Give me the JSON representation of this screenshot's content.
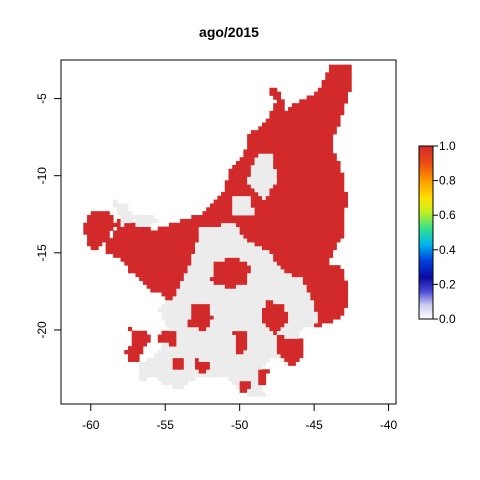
{
  "chart_data": {
    "type": "heatmap",
    "title": "ago/2015",
    "xlabel": "",
    "ylabel": "",
    "xlim": [
      -62,
      -39.5
    ],
    "ylim": [
      -24.8,
      -2.5
    ],
    "x_ticks": [
      -60,
      -55,
      -50,
      -45,
      -40
    ],
    "y_ticks": [
      -5,
      -10,
      -15,
      -20
    ],
    "x_tick_labels": [
      "-60",
      "-55",
      "-50",
      "-45",
      "-40"
    ],
    "y_tick_labels": [
      "-5",
      "-10",
      "-15",
      "-20"
    ],
    "cell_size_deg": 0.25,
    "colorbar": {
      "range": [
        0,
        1
      ],
      "ticks": [
        0.0,
        0.2,
        0.4,
        0.6,
        0.8,
        1.0
      ],
      "tick_labels": [
        "0.0",
        "0.2",
        "0.4",
        "0.6",
        "0.8",
        "1.0"
      ]
    },
    "colors": {
      "high": "#d22a2a",
      "low": "#ececec",
      "frame": "#000000"
    },
    "regions_value_1": [
      [
        [
          -46.9,
          -5.7
        ],
        [
          -44.8,
          -4.6
        ],
        [
          -43.8,
          -2.7
        ],
        [
          -42.5,
          -2.7
        ],
        [
          -42.6,
          -4.6
        ],
        [
          -43.2,
          -6.3
        ],
        [
          -43.9,
          -8.1
        ],
        [
          -43.2,
          -9.5
        ],
        [
          -42.8,
          -11.5
        ],
        [
          -43.1,
          -13.9
        ],
        [
          -44.1,
          -15.6
        ],
        [
          -43.2,
          -16.0
        ],
        [
          -42.6,
          -17.3
        ],
        [
          -43.0,
          -19.1
        ],
        [
          -44.7,
          -19.8
        ],
        [
          -46.6,
          -20.0
        ],
        [
          -48.8,
          -19.0
        ],
        [
          -50.0,
          -18.1
        ],
        [
          -50.9,
          -17.7
        ],
        [
          -52.5,
          -17.8
        ],
        [
          -53.2,
          -18.6
        ],
        [
          -54.7,
          -18.3
        ],
        [
          -55.8,
          -17.0
        ],
        [
          -57.4,
          -16.2
        ],
        [
          -57.9,
          -15.4
        ],
        [
          -59.0,
          -15.0
        ],
        [
          -58.9,
          -14.1
        ],
        [
          -58.4,
          -13.8
        ],
        [
          -58.2,
          -12.8
        ],
        [
          -55.7,
          -13.5
        ],
        [
          -54.2,
          -13.0
        ],
        [
          -52.5,
          -12.4
        ],
        [
          -51.2,
          -11.2
        ],
        [
          -50.6,
          -9.6
        ],
        [
          -49.7,
          -8.7
        ],
        [
          -49.4,
          -7.4
        ],
        [
          -48.7,
          -6.8
        ],
        [
          -48.0,
          -6.2
        ],
        [
          -47.5,
          -5.1
        ],
        [
          -48.1,
          -4.6
        ],
        [
          -47.8,
          -4.3
        ],
        [
          -47.5,
          -4.1
        ]
      ],
      [
        [
          -60.0,
          -12.3
        ],
        [
          -58.8,
          -12.2
        ],
        [
          -58.3,
          -13.1
        ],
        [
          -58.9,
          -14.0
        ],
        [
          -59.7,
          -14.8
        ],
        [
          -60.2,
          -14.6
        ],
        [
          -60.5,
          -13.4
        ]
      ],
      [
        [
          -57.4,
          -19.9
        ],
        [
          -56.4,
          -20.0
        ],
        [
          -55.9,
          -20.7
        ],
        [
          -56.6,
          -21.4
        ],
        [
          -56.8,
          -22.0
        ],
        [
          -57.3,
          -22.1
        ],
        [
          -57.7,
          -21.4
        ],
        [
          -57.3,
          -20.9
        ]
      ],
      [
        [
          -56.7,
          -15.5
        ],
        [
          -55.6,
          -15.7
        ],
        [
          -55.0,
          -16.5
        ],
        [
          -54.8,
          -17.4
        ],
        [
          -55.9,
          -17.6
        ],
        [
          -56.7,
          -16.8
        ]
      ],
      [
        [
          -51.8,
          -15.7
        ],
        [
          -50.3,
          -15.2
        ],
        [
          -49.3,
          -15.9
        ],
        [
          -49.5,
          -16.9
        ],
        [
          -50.6,
          -17.3
        ],
        [
          -51.9,
          -16.9
        ]
      ],
      [
        [
          -53.1,
          -18.3
        ],
        [
          -52.1,
          -18.2
        ],
        [
          -51.8,
          -19.3
        ],
        [
          -52.3,
          -20.1
        ],
        [
          -53.5,
          -19.7
        ]
      ],
      [
        [
          -48.2,
          -18.0
        ],
        [
          -47.0,
          -18.4
        ],
        [
          -46.7,
          -19.5
        ],
        [
          -47.6,
          -20.2
        ],
        [
          -48.6,
          -19.4
        ]
      ],
      [
        [
          -47.4,
          -20.4
        ],
        [
          -45.9,
          -20.5
        ],
        [
          -45.6,
          -21.6
        ],
        [
          -46.5,
          -22.3
        ],
        [
          -47.4,
          -21.6
        ]
      ],
      [
        [
          -50.4,
          -20.0
        ],
        [
          -49.6,
          -20.0
        ],
        [
          -49.4,
          -21.2
        ],
        [
          -50.2,
          -21.6
        ]
      ],
      [
        [
          -55.3,
          -19.9
        ],
        [
          -54.2,
          -20.2
        ],
        [
          -54.3,
          -21.0
        ],
        [
          -55.5,
          -20.8
        ]
      ],
      [
        [
          -54.6,
          -21.7
        ],
        [
          -53.8,
          -21.8
        ],
        [
          -53.7,
          -22.5
        ],
        [
          -54.5,
          -22.6
        ]
      ],
      [
        [
          -52.9,
          -21.9
        ],
        [
          -52.0,
          -22.1
        ],
        [
          -52.2,
          -22.9
        ],
        [
          -53.0,
          -22.6
        ]
      ],
      [
        [
          -48.8,
          -22.7
        ],
        [
          -48.1,
          -22.6
        ],
        [
          -48.2,
          -23.6
        ],
        [
          -48.8,
          -23.4
        ]
      ],
      [
        [
          -50.1,
          -23.4
        ],
        [
          -49.3,
          -23.3
        ],
        [
          -49.4,
          -24.0
        ],
        [
          -50.0,
          -24.0
        ]
      ]
    ],
    "regions_value_0": [
      [
        [
          -52.6,
          -13.3
        ],
        [
          -50.3,
          -13.1
        ],
        [
          -49.6,
          -14.2
        ],
        [
          -48.0,
          -14.9
        ],
        [
          -47.0,
          -16.3
        ],
        [
          -45.9,
          -16.6
        ],
        [
          -45.0,
          -18.3
        ],
        [
          -44.6,
          -19.5
        ],
        [
          -46.0,
          -20.0
        ],
        [
          -46.6,
          -22.4
        ],
        [
          -47.8,
          -21.6
        ],
        [
          -48.9,
          -23.1
        ],
        [
          -48.3,
          -24.3
        ],
        [
          -49.4,
          -24.3
        ],
        [
          -50.9,
          -23.1
        ],
        [
          -52.9,
          -23.0
        ],
        [
          -53.8,
          -23.8
        ],
        [
          -55.1,
          -23.6
        ],
        [
          -55.8,
          -23.0
        ],
        [
          -56.6,
          -23.4
        ],
        [
          -56.9,
          -22.3
        ],
        [
          -55.6,
          -21.6
        ],
        [
          -54.7,
          -20.0
        ],
        [
          -55.5,
          -18.6
        ],
        [
          -54.3,
          -17.7
        ],
        [
          -53.2,
          -15.4
        ]
      ],
      [
        [
          -58.5,
          -11.6
        ],
        [
          -57.5,
          -11.9
        ],
        [
          -57.2,
          -12.9
        ],
        [
          -57.9,
          -13.3
        ]
      ],
      [
        [
          -57.3,
          -12.7
        ],
        [
          -56.0,
          -12.5
        ],
        [
          -55.4,
          -13.0
        ],
        [
          -56.7,
          -13.4
        ]
      ],
      [
        [
          -48.9,
          -8.7
        ],
        [
          -47.8,
          -8.5
        ],
        [
          -47.5,
          -10.3
        ],
        [
          -48.4,
          -11.6
        ],
        [
          -49.5,
          -10.3
        ]
      ],
      [
        [
          -50.4,
          -11.2
        ],
        [
          -49.4,
          -11.3
        ],
        [
          -49.0,
          -12.5
        ],
        [
          -50.5,
          -12.6
        ]
      ]
    ]
  }
}
